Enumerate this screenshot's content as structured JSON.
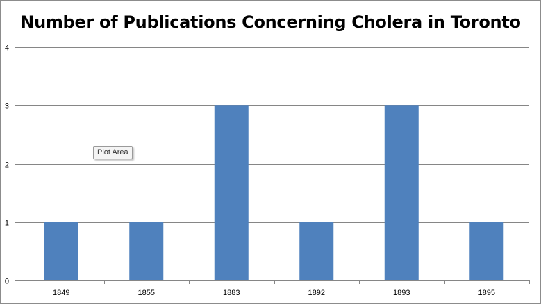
{
  "tooltip": {
    "label": "Plot Area"
  },
  "colors": {
    "bar": "#4f81bd",
    "grid": "#868686",
    "axis": "#868686"
  },
  "chart_data": {
    "type": "bar",
    "title": "Number of Publications Concerning Cholera in Toronto",
    "xlabel": "",
    "ylabel": "",
    "categories": [
      "1849",
      "1855",
      "1883",
      "1892",
      "1893",
      "1895"
    ],
    "values": [
      1,
      1,
      3,
      1,
      3,
      1
    ],
    "ylim": [
      0,
      4
    ],
    "yticks": [
      "0",
      "1",
      "2",
      "3",
      "4"
    ],
    "grid": true,
    "legend": "none"
  }
}
